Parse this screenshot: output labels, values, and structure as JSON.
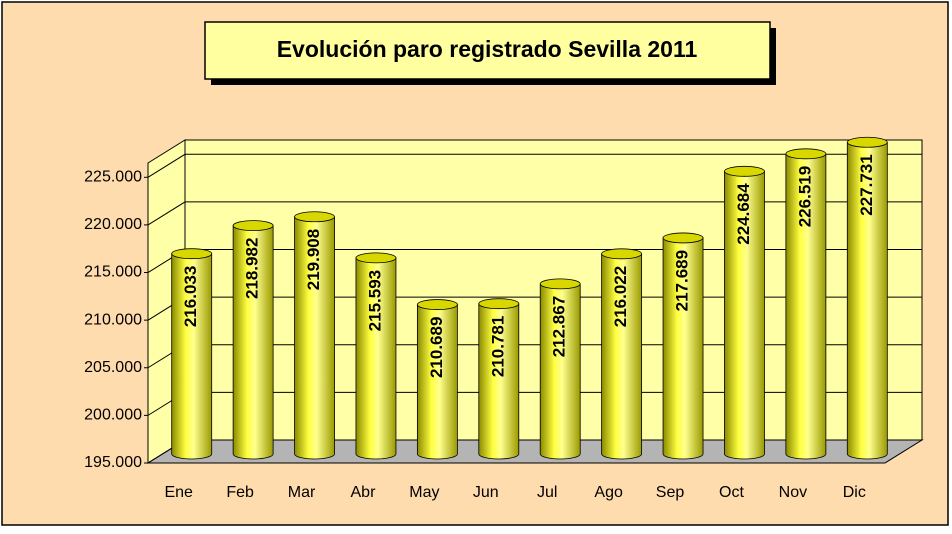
{
  "chart_data": {
    "type": "bar3d",
    "title": "Evolución paro registrado Sevilla  2011",
    "categories": [
      "Ene",
      "Feb",
      "Mar",
      "Abr",
      "May",
      "Jun",
      "Jul",
      "Ago",
      "Sep",
      "Oct",
      "Nov",
      "Dic"
    ],
    "values": [
      216033,
      218982,
      219908,
      215593,
      210689,
      210781,
      212867,
      216022,
      217689,
      224684,
      226519,
      227731
    ],
    "value_labels": [
      "216.033",
      "218.982",
      "219.908",
      "215.593",
      "210.689",
      "210.781",
      "212.867",
      "216.022",
      "217.689",
      "224.684",
      "226.519",
      "227.731"
    ],
    "color": "#ffff00",
    "ylim": [
      195000,
      226500
    ],
    "yticks": [
      {
        "value": 195000,
        "label": "195.000"
      },
      {
        "value": 200000,
        "label": "200.000"
      },
      {
        "value": 205000,
        "label": "205.000"
      },
      {
        "value": 210000,
        "label": "210.000"
      },
      {
        "value": 215000,
        "label": "215.000"
      },
      {
        "value": 220000,
        "label": "220.000"
      },
      {
        "value": 225000,
        "label": "225.000"
      }
    ],
    "grid": true
  }
}
